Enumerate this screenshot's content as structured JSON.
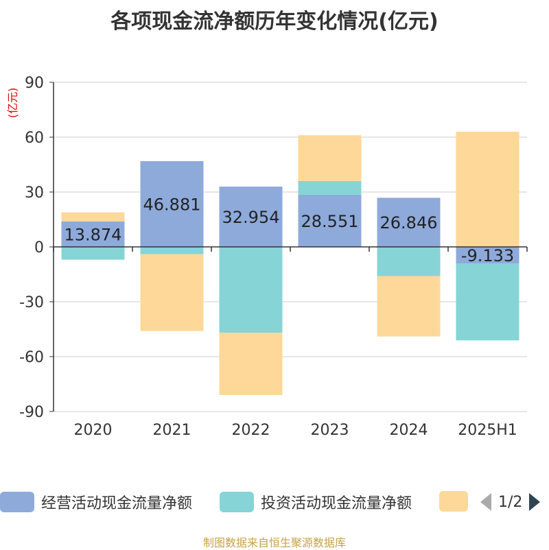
{
  "title": "各项现金流净额历年变化情况(亿元)",
  "unit_label": "(亿元)",
  "footer": "制图数据来自恒生聚源数据库",
  "legend": {
    "items": [
      {
        "label": "经营活动现金流量净额",
        "color": "#8eaadb"
      },
      {
        "label": "投资活动现金流量净额",
        "color": "#86d4d6"
      },
      {
        "label": "",
        "color": "#fed898"
      }
    ],
    "page_text": "1/2"
  },
  "chart_data": {
    "type": "bar",
    "stacked": true,
    "categories": [
      "2020",
      "2021",
      "2022",
      "2023",
      "2024",
      "2025H1"
    ],
    "ylim": [
      -90,
      90
    ],
    "yticks": [
      90,
      60,
      30,
      0,
      -30,
      -60,
      -90
    ],
    "grid": true,
    "series": [
      {
        "name": "经营活动现金流量净额",
        "color": "#8eaadb",
        "values": [
          13.874,
          46.881,
          32.954,
          28.551,
          26.846,
          -9.133
        ],
        "labels": [
          "13.874",
          "46.881",
          "32.954",
          "28.551",
          "26.846",
          "-9.133"
        ]
      },
      {
        "name": "投资活动现金流量净额",
        "color": "#86d4d6",
        "values": [
          -7.0,
          -4.0,
          -47.0,
          7.5,
          -16.0,
          -42.0
        ]
      },
      {
        "color": "#fed898",
        "values": [
          5.0,
          -42.0,
          -34.0,
          25.0,
          -33.0,
          63.0
        ]
      }
    ]
  }
}
